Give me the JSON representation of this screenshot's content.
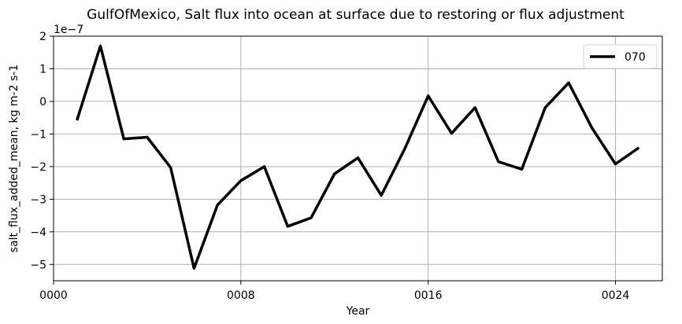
{
  "chart_data": {
    "type": "line",
    "title": "GulfOfMexico, Salt flux into ocean at surface due to restoring or flux adjustment",
    "xlabel": "Year",
    "ylabel": "salt_flux_added_mean, kg m-2 s-1",
    "offset_text": "1e−7",
    "xlim": [
      0,
      26
    ],
    "ylim": [
      -5.5,
      2.0
    ],
    "x_ticks": [
      0,
      8,
      16,
      24
    ],
    "x_tick_labels": [
      "0000",
      "0008",
      "0016",
      "0024"
    ],
    "y_ticks": [
      -5,
      -4,
      -3,
      -2,
      -1,
      0,
      1,
      2
    ],
    "y_tick_labels": [
      "−5",
      "−4",
      "−3",
      "−2",
      "−1",
      "0",
      "1",
      "2"
    ],
    "grid": true,
    "legend_position": "top-right",
    "series": [
      {
        "name": "070",
        "color": "#000000",
        "x": [
          1,
          2,
          3,
          4,
          5,
          6,
          7,
          8,
          9,
          10,
          11,
          12,
          13,
          14,
          15,
          16,
          17,
          18,
          19,
          20,
          21,
          22,
          23,
          24,
          25
        ],
        "values": [
          -0.58,
          1.7,
          -1.15,
          -1.1,
          -2.03,
          -5.12,
          -3.18,
          -2.43,
          -2.0,
          -3.83,
          -3.57,
          -2.22,
          -1.73,
          -2.88,
          -1.45,
          0.17,
          -0.98,
          -0.19,
          -1.85,
          -2.08,
          -0.19,
          0.57,
          -0.82,
          -1.92,
          -1.42
        ]
      }
    ]
  }
}
